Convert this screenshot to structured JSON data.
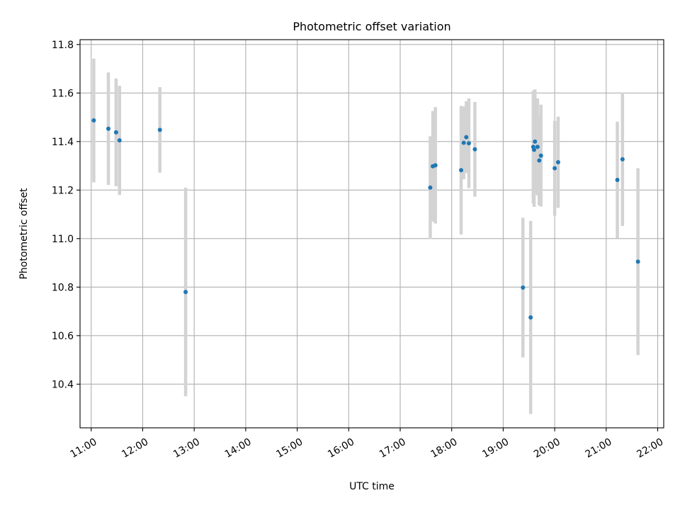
{
  "chart_data": {
    "type": "scatter",
    "title": "Photometric offset variation",
    "xlabel": "UTC time",
    "ylabel": "Photometric offset",
    "x_unit": "hours UTC",
    "xlim": [
      "10:47",
      "22:07"
    ],
    "ylim": [
      10.22,
      11.82
    ],
    "x_ticks": [
      "11:00",
      "12:00",
      "13:00",
      "14:00",
      "15:00",
      "16:00",
      "17:00",
      "18:00",
      "19:00",
      "20:00",
      "21:00",
      "22:00"
    ],
    "y_ticks": [
      10.4,
      10.6,
      10.8,
      11.0,
      11.2,
      11.4,
      11.6,
      11.8
    ],
    "y_tick_labels": [
      "10.4",
      "10.6",
      "10.8",
      "11.0",
      "11.2",
      "11.4",
      "11.6",
      "11.8"
    ],
    "grid": true,
    "marker_color": "#1f77b4",
    "errorbar_color": "#d3d3d3",
    "points": [
      {
        "time": "11:03",
        "y": 11.487,
        "yerr": 0.255
      },
      {
        "time": "11:20",
        "y": 11.453,
        "yerr": 0.232
      },
      {
        "time": "11:29",
        "y": 11.438,
        "yerr": 0.222
      },
      {
        "time": "11:33",
        "y": 11.405,
        "yerr": 0.225
      },
      {
        "time": "12:20",
        "y": 11.448,
        "yerr": 0.176
      },
      {
        "time": "12:50",
        "y": 10.78,
        "yerr": 0.43
      },
      {
        "time": "17:35",
        "y": 11.21,
        "yerr": 0.212
      },
      {
        "time": "17:38",
        "y": 11.298,
        "yerr": 0.228
      },
      {
        "time": "17:41",
        "y": 11.302,
        "yerr": 0.24
      },
      {
        "time": "18:11",
        "y": 11.282,
        "yerr": 0.265
      },
      {
        "time": "18:14",
        "y": 11.395,
        "yerr": 0.15
      },
      {
        "time": "18:17",
        "y": 11.418,
        "yerr": 0.148
      },
      {
        "time": "18:20",
        "y": 11.393,
        "yerr": 0.185
      },
      {
        "time": "18:27",
        "y": 11.368,
        "yerr": 0.195
      },
      {
        "time": "19:23",
        "y": 10.798,
        "yerr": 0.288
      },
      {
        "time": "19:32",
        "y": 10.675,
        "yerr": 0.398
      },
      {
        "time": "19:35",
        "y": 11.378,
        "yerr": 0.232
      },
      {
        "time": "19:36",
        "y": 11.366,
        "yerr": 0.235
      },
      {
        "time": "19:37",
        "y": 11.4,
        "yerr": 0.215
      },
      {
        "time": "19:40",
        "y": 11.378,
        "yerr": 0.2
      },
      {
        "time": "19:42",
        "y": 11.322,
        "yerr": 0.185
      },
      {
        "time": "19:44",
        "y": 11.342,
        "yerr": 0.21
      },
      {
        "time": "20:00",
        "y": 11.29,
        "yerr": 0.195
      },
      {
        "time": "20:04",
        "y": 11.315,
        "yerr": 0.188
      },
      {
        "time": "21:13",
        "y": 11.242,
        "yerr": 0.24
      },
      {
        "time": "21:19",
        "y": 11.327,
        "yerr": 0.275
      },
      {
        "time": "21:37",
        "y": 10.905,
        "yerr": 0.385
      }
    ]
  }
}
